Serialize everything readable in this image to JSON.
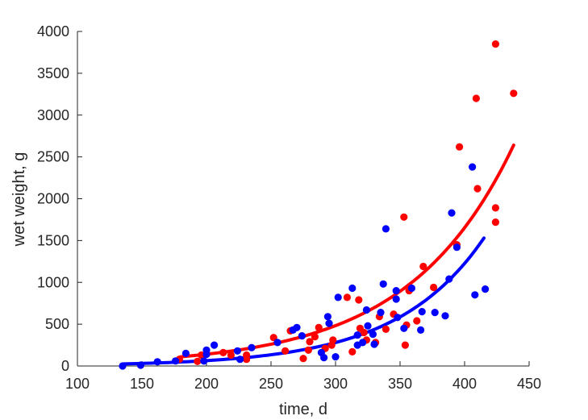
{
  "chart_data": {
    "type": "scatter",
    "xlabel": "time, d",
    "ylabel": "wet weight, g",
    "xlim": [
      100,
      450
    ],
    "ylim": [
      0,
      4000
    ],
    "xticks": [
      100,
      150,
      200,
      250,
      300,
      350,
      400,
      450
    ],
    "yticks": [
      0,
      500,
      1000,
      1500,
      2000,
      2500,
      3000,
      3500,
      4000
    ],
    "xtick_labels": [
      "100",
      "150",
      "200",
      "250",
      "300",
      "350",
      "400",
      "450"
    ],
    "ytick_labels": [
      "0",
      "500",
      "1000",
      "1500",
      "2000",
      "2500",
      "3000",
      "3500",
      "4000"
    ],
    "grid": false,
    "legend": "none",
    "series": [
      {
        "color": "#ff0000",
        "points": [
          [
            179,
            80
          ],
          [
            193,
            55
          ],
          [
            196,
            130
          ],
          [
            213,
            160
          ],
          [
            219,
            130
          ],
          [
            231,
            80
          ],
          [
            231,
            130
          ],
          [
            252,
            340
          ],
          [
            261,
            180
          ],
          [
            265,
            420
          ],
          [
            275,
            90
          ],
          [
            279,
            190
          ],
          [
            280,
            290
          ],
          [
            284,
            350
          ],
          [
            287,
            460
          ],
          [
            292,
            210
          ],
          [
            297,
            250
          ],
          [
            298,
            310
          ],
          [
            309,
            820
          ],
          [
            313,
            170
          ],
          [
            318,
            790
          ],
          [
            319,
            450
          ],
          [
            322,
            400
          ],
          [
            324,
            310
          ],
          [
            331,
            280
          ],
          [
            334,
            590
          ],
          [
            339,
            440
          ],
          [
            345,
            620
          ],
          [
            353,
            1780
          ],
          [
            354,
            250
          ],
          [
            355,
            490
          ],
          [
            357,
            900
          ],
          [
            363,
            540
          ],
          [
            368,
            1190
          ],
          [
            376,
            940
          ],
          [
            394,
            1450
          ],
          [
            396,
            2620
          ],
          [
            409,
            3200
          ],
          [
            410,
            2120
          ],
          [
            424,
            3850
          ],
          [
            424,
            1890
          ],
          [
            424,
            1720
          ],
          [
            438,
            3260
          ]
        ],
        "fit": {
          "x_start": 180,
          "x_end": 438,
          "y_start": 110,
          "y_end": 2640
        }
      },
      {
        "color": "#0000ff",
        "points": [
          [
            135,
            0
          ],
          [
            149,
            10
          ],
          [
            162,
            50
          ],
          [
            176,
            60
          ],
          [
            184,
            150
          ],
          [
            198,
            60
          ],
          [
            200,
            140
          ],
          [
            200,
            190
          ],
          [
            206,
            250
          ],
          [
            224,
            180
          ],
          [
            226,
            80
          ],
          [
            235,
            220
          ],
          [
            255,
            280
          ],
          [
            267,
            430
          ],
          [
            270,
            460
          ],
          [
            274,
            360
          ],
          [
            289,
            160
          ],
          [
            291,
            100
          ],
          [
            294,
            590
          ],
          [
            295,
            510
          ],
          [
            300,
            110
          ],
          [
            302,
            820
          ],
          [
            313,
            930
          ],
          [
            317,
            370
          ],
          [
            317,
            250
          ],
          [
            321,
            280
          ],
          [
            324,
            670
          ],
          [
            325,
            480
          ],
          [
            329,
            380
          ],
          [
            330,
            260
          ],
          [
            335,
            640
          ],
          [
            337,
            980
          ],
          [
            339,
            1640
          ],
          [
            347,
            900
          ],
          [
            347,
            800
          ],
          [
            348,
            580
          ],
          [
            353,
            450
          ],
          [
            359,
            930
          ],
          [
            366,
            430
          ],
          [
            367,
            650
          ],
          [
            377,
            640
          ],
          [
            385,
            600
          ],
          [
            388,
            1040
          ],
          [
            390,
            1830
          ],
          [
            394,
            1420
          ],
          [
            406,
            2380
          ],
          [
            408,
            850
          ],
          [
            416,
            920
          ]
        ],
        "fit": {
          "x_start": 136,
          "x_end": 415,
          "y_start": 25,
          "y_end": 1530
        }
      }
    ]
  }
}
